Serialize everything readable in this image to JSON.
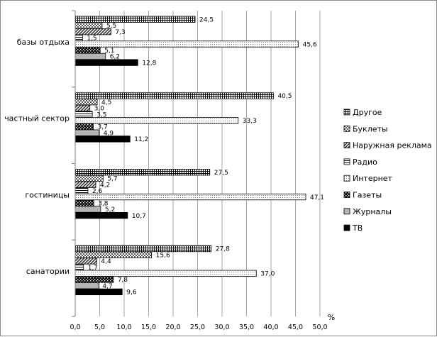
{
  "chart_data": {
    "type": "bar",
    "orientation": "horizontal",
    "categories": [
      "базы отдыха",
      "частный сектор",
      "гостиницы",
      "санатории"
    ],
    "series": [
      {
        "name": "Другое",
        "values": [
          24.5,
          40.5,
          27.5,
          27.8
        ],
        "labels": [
          "24,5",
          "40,5",
          "27,5",
          "27,8"
        ]
      },
      {
        "name": "Буклеты",
        "values": [
          5.5,
          4.5,
          5.7,
          15.6
        ],
        "labels": [
          "5,5",
          "4,5",
          "5,7",
          "15,6"
        ]
      },
      {
        "name": "Наружная реклама",
        "values": [
          7.3,
          3.0,
          4.2,
          4.4
        ],
        "labels": [
          "7,3",
          "3,0",
          "4,2",
          "4,4"
        ]
      },
      {
        "name": "Радио",
        "values": [
          1.5,
          3.5,
          2.6,
          1.7
        ],
        "labels": [
          "1,5",
          "3,5",
          "2,6",
          "1,7"
        ]
      },
      {
        "name": "Интернет",
        "values": [
          45.6,
          33.3,
          47.1,
          37.0
        ],
        "labels": [
          "45,6",
          "33,3",
          "47,1",
          "37,0"
        ]
      },
      {
        "name": "Газеты",
        "values": [
          5.1,
          3.7,
          3.8,
          7.8
        ],
        "labels": [
          "5,1",
          "3,7",
          "3,8",
          "7,8"
        ]
      },
      {
        "name": "Журналы",
        "values": [
          6.2,
          4.9,
          5.2,
          4.7
        ],
        "labels": [
          "6,2",
          "4,9",
          "5,2",
          "4,7"
        ]
      },
      {
        "name": "ТВ",
        "values": [
          12.8,
          11.2,
          10.7,
          9.6
        ],
        "labels": [
          "12,8",
          "11,2",
          "10,7",
          "9,6"
        ]
      }
    ],
    "xlim": [
      0,
      50
    ],
    "x_ticks": [
      0,
      5,
      10,
      15,
      20,
      25,
      30,
      35,
      40,
      45,
      50
    ],
    "x_tick_labels": [
      "0,0",
      "5,0",
      "10,0",
      "15,0",
      "20,0",
      "25,0",
      "30,0",
      "35,0",
      "40,0",
      "45,0",
      "50,0"
    ],
    "unit_label": "%",
    "grid": "vertical",
    "legend": "right",
    "legend_order": [
      "Другое",
      "Буклеты",
      "Наружная реклама",
      "Радио",
      "Интернет",
      "Газеты",
      "Журналы",
      "ТВ"
    ]
  }
}
